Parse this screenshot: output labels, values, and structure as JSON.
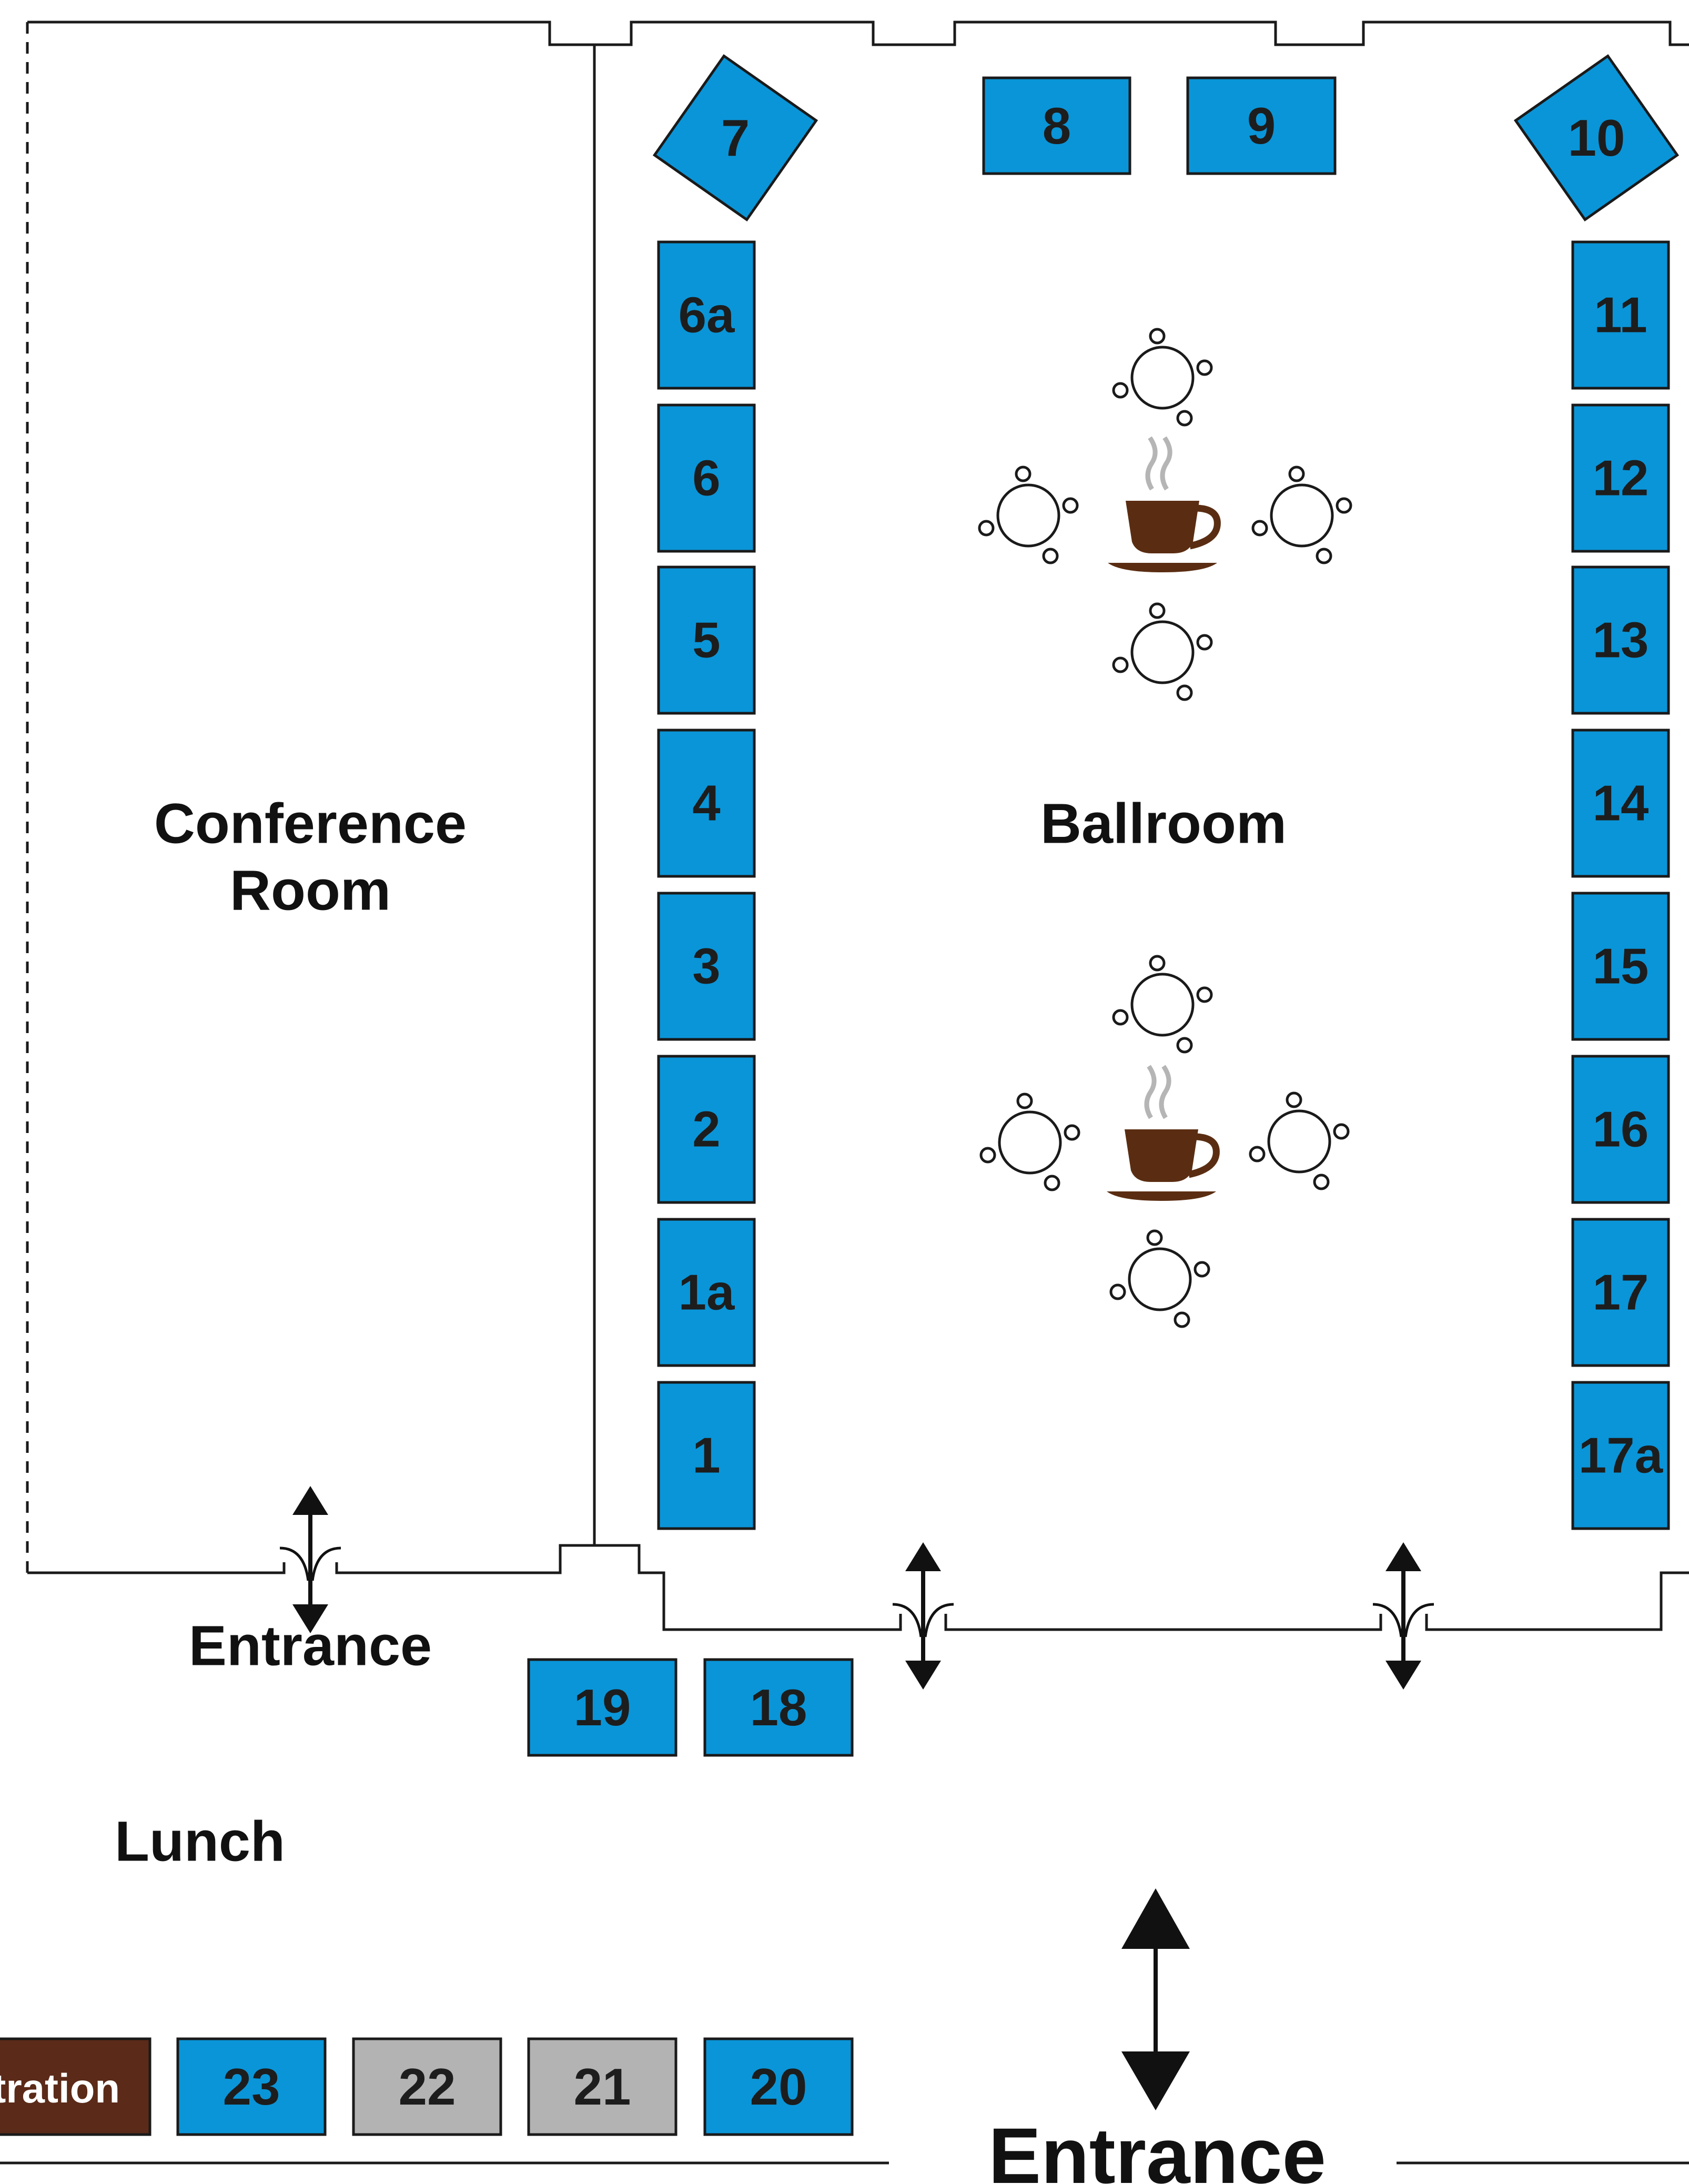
{
  "rooms": {
    "conference_room_line1": "Conference",
    "conference_room_line2": "Room",
    "ballroom": "Ballroom",
    "lunch": "Lunch"
  },
  "entrances": {
    "side_label": "Entrance",
    "main_label": "Entrance"
  },
  "registration": {
    "label": "Registration"
  },
  "booths": [
    {
      "id": "7",
      "label": "7",
      "status": "available"
    },
    {
      "id": "8",
      "label": "8",
      "status": "available"
    },
    {
      "id": "9",
      "label": "9",
      "status": "available"
    },
    {
      "id": "10",
      "label": "10",
      "status": "available"
    },
    {
      "id": "6a",
      "label": "6a",
      "status": "available"
    },
    {
      "id": "6",
      "label": "6",
      "status": "available"
    },
    {
      "id": "5",
      "label": "5",
      "status": "available"
    },
    {
      "id": "4",
      "label": "4",
      "status": "available"
    },
    {
      "id": "3",
      "label": "3",
      "status": "available"
    },
    {
      "id": "2",
      "label": "2",
      "status": "available"
    },
    {
      "id": "1a",
      "label": "1a",
      "status": "available"
    },
    {
      "id": "1",
      "label": "1",
      "status": "available"
    },
    {
      "id": "11",
      "label": "11",
      "status": "available"
    },
    {
      "id": "12",
      "label": "12",
      "status": "available"
    },
    {
      "id": "13",
      "label": "13",
      "status": "available"
    },
    {
      "id": "14",
      "label": "14",
      "status": "available"
    },
    {
      "id": "15",
      "label": "15",
      "status": "available"
    },
    {
      "id": "16",
      "label": "16",
      "status": "available"
    },
    {
      "id": "17",
      "label": "17",
      "status": "available"
    },
    {
      "id": "17a",
      "label": "17a",
      "status": "available"
    },
    {
      "id": "19",
      "label": "19",
      "status": "available"
    },
    {
      "id": "18",
      "label": "18",
      "status": "available"
    },
    {
      "id": "23",
      "label": "23",
      "status": "available"
    },
    {
      "id": "22",
      "label": "22",
      "status": "reserved"
    },
    {
      "id": "21",
      "label": "21",
      "status": "reserved"
    },
    {
      "id": "20",
      "label": "20",
      "status": "available"
    }
  ],
  "colors": {
    "booth_available": "#0a95d8",
    "booth_reserved": "#b3b3b3",
    "registration": "#5b2a18",
    "coffee": "#5a2d12",
    "steam": "#b5b5b5",
    "wall": "#1a1a1a"
  },
  "icons": {
    "coffee_station": "coffee-cup-icon",
    "table": "round-table-icon",
    "door": "double-arrow-icon"
  }
}
